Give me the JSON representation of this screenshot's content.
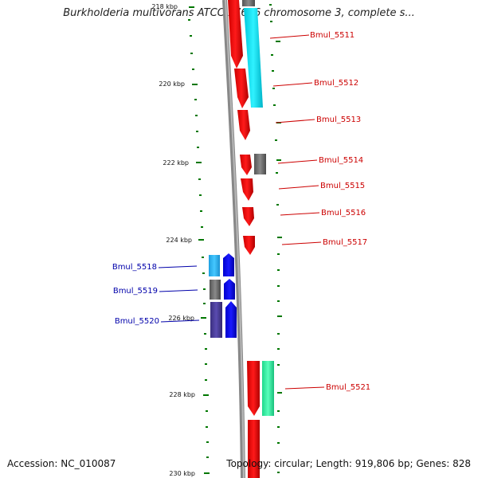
{
  "title": "Burkholderia multivorans ATCC 17616 chromosome 3, complete s...",
  "accession_text": "Accession: NC_010087",
  "summary_text": "Topology: circular; Length: 919,806 bp; Genes: 828",
  "ticks": [
    {
      "label": "218 kbp",
      "kbp": 218
    },
    {
      "label": "220 kbp",
      "kbp": 220
    },
    {
      "label": "222 kbp",
      "kbp": 222
    },
    {
      "label": "224 kbp",
      "kbp": 224
    },
    {
      "label": "226 kbp",
      "kbp": 226
    },
    {
      "label": "228 kbp",
      "kbp": 228
    },
    {
      "label": "230 kbp",
      "kbp": 230
    }
  ],
  "genes_right": [
    {
      "name": "Bmul_5511"
    },
    {
      "name": "Bmul_5512"
    },
    {
      "name": "Bmul_5513"
    },
    {
      "name": "Bmul_5514"
    },
    {
      "name": "Bmul_5515"
    },
    {
      "name": "Bmul_5516"
    },
    {
      "name": "Bmul_5517"
    },
    {
      "name": "Bmul_5521"
    }
  ],
  "genes_left": [
    {
      "name": "Bmul_5518"
    },
    {
      "name": "Bmul_5519"
    },
    {
      "name": "Bmul_5520"
    }
  ],
  "colors": {
    "forward_gene": "#ff0000",
    "reverse_gene": "#0000ff",
    "backbone": "#888888",
    "tick": "#007700",
    "cyan": "#00e5f5",
    "light_blue": "#2ab5f0",
    "green": "#33f0a0",
    "gray": "#707070",
    "purple": "#4a3d9a"
  }
}
